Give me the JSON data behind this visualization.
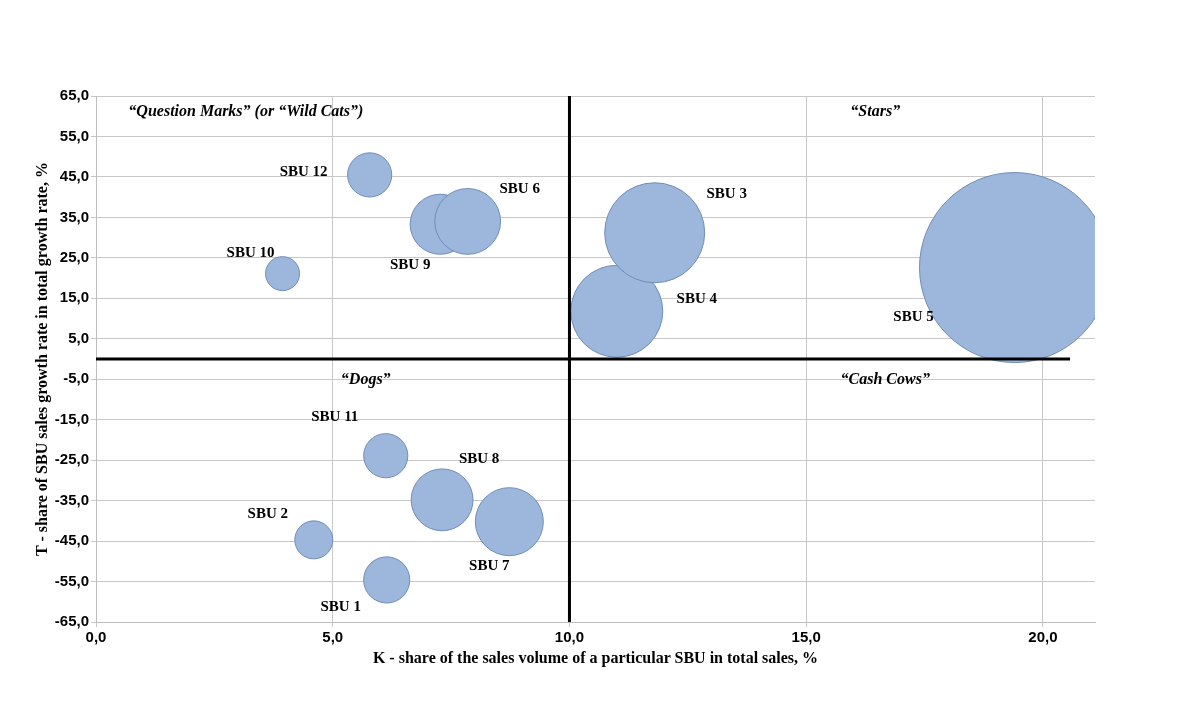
{
  "chart_data": {
    "type": "bubble",
    "xlabel": "K - share of the sales volume of a particular SBU in total sales, %",
    "ylabel": "T - share of SBU sales growth rate in total growth rate, %",
    "xlim": [
      0,
      21.1
    ],
    "ylim": [
      -65,
      65
    ],
    "xticks": [
      {
        "value": 0,
        "label": "0,0"
      },
      {
        "value": 5,
        "label": "5,0"
      },
      {
        "value": 10,
        "label": "10,0"
      },
      {
        "value": 15,
        "label": "15,0"
      },
      {
        "value": 20,
        "label": "20,0"
      }
    ],
    "yticks": [
      {
        "value": -65,
        "label": "-65,0"
      },
      {
        "value": -55,
        "label": "-55,0"
      },
      {
        "value": -45,
        "label": "-45,0"
      },
      {
        "value": -35,
        "label": "-35,0"
      },
      {
        "value": -25,
        "label": "-25,0"
      },
      {
        "value": -15,
        "label": "-15,0"
      },
      {
        "value": -5,
        "label": "-5,0"
      },
      {
        "value": 5,
        "label": "5,0"
      },
      {
        "value": 15,
        "label": "15,0"
      },
      {
        "value": 25,
        "label": "25,0"
      },
      {
        "value": 35,
        "label": "35,0"
      },
      {
        "value": 45,
        "label": "45,0"
      },
      {
        "value": 55,
        "label": "55,0"
      },
      {
        "value": 65,
        "label": "65,0"
      }
    ],
    "grid": true,
    "legend": false,
    "ref_lines": [
      {
        "axis": "x",
        "value": 10,
        "color": "#000000"
      },
      {
        "axis": "y",
        "value": 0,
        "color": "#000000"
      }
    ],
    "annotations": [
      "“Question Marks” (or “Wild Cats”)",
      "“Stars”",
      "“Dogs”",
      "“Cash Cows”"
    ],
    "series": [
      {
        "name": "SBU 1",
        "color": "#9db7dc",
        "x": [
          6.14
        ],
        "values": [
          -54.6
        ],
        "sizes": [
          0.059
        ]
      },
      {
        "name": "SBU 2",
        "color": "#9db7dc",
        "x": [
          4.6
        ],
        "values": [
          -44.7
        ],
        "sizes": [
          0.04
        ]
      },
      {
        "name": "SBU 3",
        "color": "#9db7dc",
        "x": [
          11.8
        ],
        "values": [
          31.2
        ],
        "sizes": [
          0.277
        ]
      },
      {
        "name": "SBU 4",
        "color": "#9db7dc",
        "x": [
          11.0
        ],
        "values": [
          11.8
        ],
        "sizes": [
          0.234
        ]
      },
      {
        "name": "SBU 5",
        "color": "#9db7dc",
        "x": [
          19.4
        ],
        "values": [
          22.6
        ],
        "sizes": [
          1
        ]
      },
      {
        "name": "SBU 6",
        "color": "#9db7dc",
        "x": [
          7.85
        ],
        "values": [
          34.0
        ],
        "sizes": [
          0.12
        ]
      },
      {
        "name": "SBU 7",
        "color": "#9db7dc",
        "x": [
          8.73
        ],
        "values": [
          -40.2
        ],
        "sizes": [
          0.128
        ]
      },
      {
        "name": "SBU 8",
        "color": "#9db7dc",
        "x": [
          7.31
        ],
        "values": [
          -34.8
        ],
        "sizes": [
          0.106
        ]
      },
      {
        "name": "SBU 9",
        "color": "#9db7dc",
        "x": [
          7.27
        ],
        "values": [
          33.3
        ],
        "sizes": [
          0.1
        ]
      },
      {
        "name": "SBU 10",
        "color": "#9db7dc",
        "x": [
          3.94
        ],
        "values": [
          21.1
        ],
        "sizes": [
          0.032
        ]
      },
      {
        "name": "SBU 11",
        "color": "#9db7dc",
        "x": [
          6.12
        ],
        "values": [
          -23.9
        ],
        "sizes": [
          0.054
        ]
      },
      {
        "name": "SBU 12",
        "color": "#9db7dc",
        "x": [
          5.78
        ],
        "values": [
          45.5
        ],
        "sizes": [
          0.054
        ]
      }
    ]
  }
}
